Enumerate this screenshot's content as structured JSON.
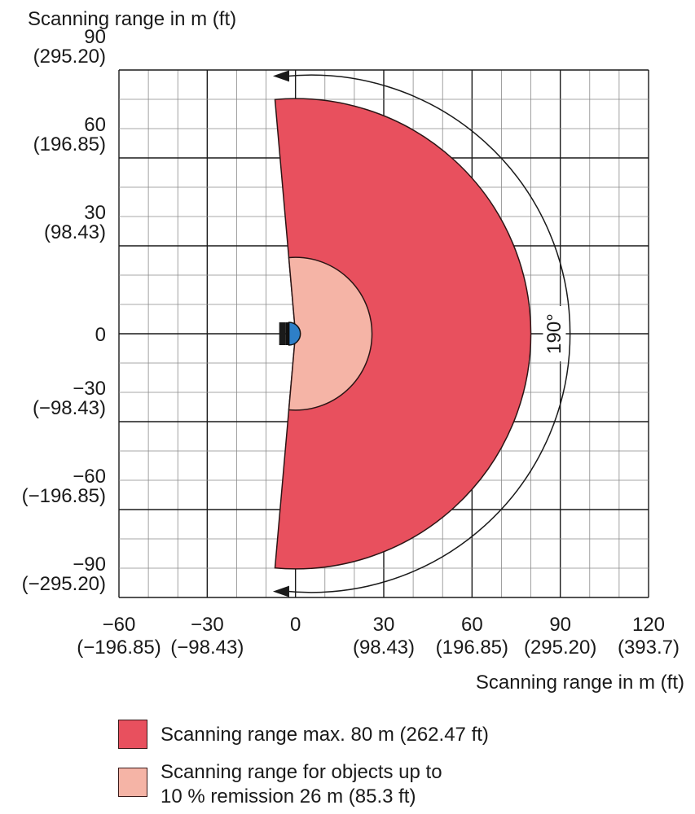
{
  "chart_data": {
    "type": "scan-field-diagram",
    "title": "Scanning range in m (ft)",
    "xlabel": "Scanning range in m (ft)",
    "xlim": [
      -60,
      120
    ],
    "ylim": [
      -90,
      90
    ],
    "x_ticks": [
      {
        "value": -60,
        "m": "−60",
        "ft": "(−196.85)"
      },
      {
        "value": -30,
        "m": "−30",
        "ft": "(−98.43)"
      },
      {
        "value": 0,
        "m": "0",
        "ft": ""
      },
      {
        "value": 30,
        "m": "30",
        "ft": "(98.43)"
      },
      {
        "value": 60,
        "m": "60",
        "ft": "(196.85)"
      },
      {
        "value": 90,
        "m": "90",
        "ft": "(295.20)"
      },
      {
        "value": 120,
        "m": "120",
        "ft": "(393.7)"
      }
    ],
    "y_ticks": [
      {
        "value": 90,
        "m": "90",
        "ft": "(295.20)"
      },
      {
        "value": 60,
        "m": "60",
        "ft": "(196.85)"
      },
      {
        "value": 30,
        "m": "30",
        "ft": "(98.43)"
      },
      {
        "value": 0,
        "m": "0",
        "ft": ""
      },
      {
        "value": -30,
        "m": "−30",
        "ft": "(−98.43)"
      },
      {
        "value": -60,
        "m": "−60",
        "ft": "(−196.85)"
      },
      {
        "value": -90,
        "m": "−90",
        "ft": "(−295.20)"
      }
    ],
    "grid_minor_step": 10,
    "grid_major_step": 30,
    "scan_angle_deg": 190,
    "scan_angle_label": "190°",
    "ranges": [
      {
        "radius": 80,
        "color": "#e8505e",
        "label": "Scanning range max. 80 m (262.47  ft)"
      },
      {
        "radius": 26,
        "color": "#f5b4a6",
        "label": "Scanning range for objects up to 10 % remission 26 m (85.3 ft)"
      }
    ]
  },
  "legend": {
    "max_range": "Scanning range max. 80 m (262.47  ft)",
    "remission_line1": "Scanning range for objects up to",
    "remission_line2": "10 % remission 26 m (85.3 ft)"
  },
  "colors": {
    "max_range_fill": "#e8505e",
    "remission_fill": "#f5b4a6",
    "sensor": "#2e7fc8",
    "grid": "#1a1a1a"
  },
  "icons": {
    "sensor": "laser-scanner-icon"
  }
}
